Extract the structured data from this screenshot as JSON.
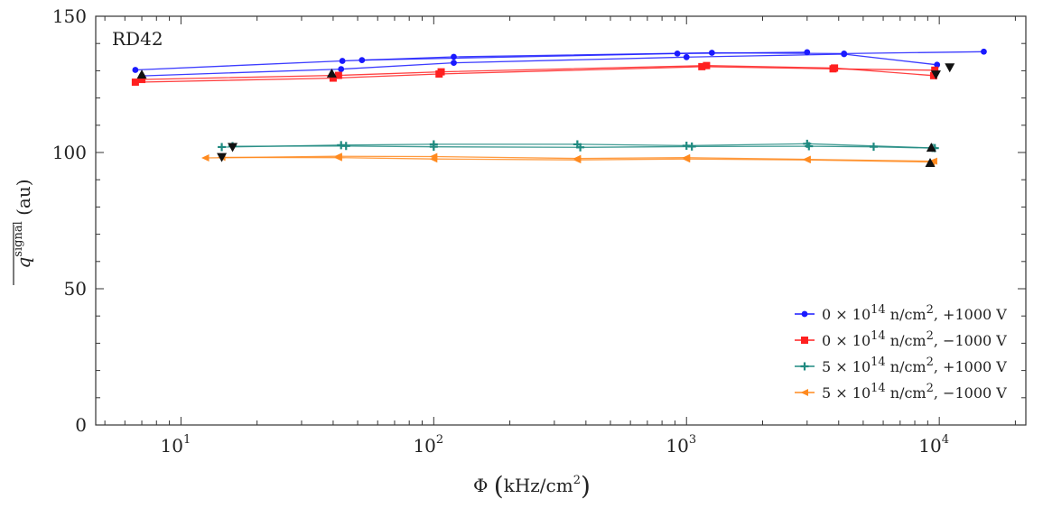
{
  "chart_data": {
    "type": "line",
    "title": "",
    "inset_label": "RD42",
    "xlabel": {
      "symbol": "Φ",
      "unit": "kHz/cm",
      "unit_sup": "2"
    },
    "ylabel": {
      "main": "q",
      "sup": "signal",
      "unit": "(au)"
    },
    "xscale": "log",
    "xlim": [
      4.6,
      22000
    ],
    "ylim": [
      0,
      150
    ],
    "yticks": [
      0,
      50,
      100,
      150
    ],
    "xticks": [
      {
        "value": 10,
        "base": "10",
        "exp": "1"
      },
      {
        "value": 100,
        "base": "10",
        "exp": "2"
      },
      {
        "value": 1000,
        "base": "10",
        "exp": "3"
      },
      {
        "value": 10000,
        "base": "10",
        "exp": "4"
      }
    ],
    "grid": false,
    "legend_position": "bottom-right",
    "series": [
      {
        "name": "0 × 10¹⁴ n/cm², +1000 V",
        "label": {
          "a": "0 × 10",
          "sup1": "14",
          "b": " n/cm",
          "sup2": "2",
          "c": ", +1000 V"
        },
        "color": "#1a1aff",
        "marker": "circle",
        "runs": [
          {
            "x": [
              6.6,
              43.5,
              120,
              1260,
              4200,
              15000
            ],
            "y": [
              130.3,
              133.6,
              135.1,
              136.6,
              136.3,
              137.0
            ],
            "end": "none"
          },
          {
            "x": [
              7.0,
              43.0,
              120,
              1000,
              4200,
              9800
            ],
            "y": [
              128.1,
              130.6,
              132.9,
              135.0,
              136.1,
              132.2
            ],
            "end": "none"
          },
          {
            "x": [
              52,
              920,
              3000
            ],
            "y": [
              133.9,
              136.3,
              136.8
            ],
            "end": "none"
          }
        ]
      },
      {
        "name": "0 × 10¹⁴ n/cm², −1000 V",
        "label": {
          "a": "0 × 10",
          "sup1": "14",
          "b": " n/cm",
          "sup2": "2",
          "c": ", −1000 V"
        },
        "color": "#ff2020",
        "marker": "square",
        "runs": [
          {
            "x": [
              6.6,
              40,
              105,
              1150,
              3800,
              9600
            ],
            "y": [
              125.8,
              127.3,
              128.8,
              131.5,
              130.7,
              130.2
            ],
            "end": "none"
          },
          {
            "x": [
              7.0,
              42,
              107,
              1200,
              3850,
              9500
            ],
            "y": [
              126.8,
              128.3,
              129.6,
              131.9,
              131.0,
              128.2
            ],
            "end": "none"
          }
        ]
      },
      {
        "name": "5 × 10¹⁴ n/cm², +1000 V",
        "label": {
          "a": "5 × 10",
          "sup1": "14",
          "b": " n/cm",
          "sup2": "2",
          "c": ", +1000 V"
        },
        "color": "#1f8a80",
        "marker": "plus",
        "runs": [
          {
            "x": [
              14.5,
              43,
              100,
              370,
              1000,
              3000,
              9400
            ],
            "y": [
              102.0,
              102.7,
              103.0,
              103.0,
              102.5,
              103.2,
              101.7
            ],
            "end": "none"
          },
          {
            "x": [
              16,
              45,
              100,
              380,
              1050,
              3050,
              5500,
              9600
            ],
            "y": [
              102.3,
              102.4,
              102.1,
              101.9,
              102.2,
              102.3,
              102.1,
              101.6
            ],
            "end": "none"
          }
        ]
      },
      {
        "name": "5 × 10¹⁴ n/cm², −1000 V",
        "label": {
          "a": "5 × 10",
          "sup1": "14",
          "b": " n/cm",
          "sup2": "2",
          "c": ", −1000 V"
        },
        "color": "#ff8a1f",
        "marker": "triangle-left",
        "runs": [
          {
            "x": [
              12.5,
              42,
              100,
              370,
              1000,
              3000,
              9500
            ],
            "y": [
              98.0,
              98.6,
              98.5,
              97.8,
              98.1,
              97.5,
              96.8
            ],
            "end": "none"
          },
          {
            "x": [
              14.5,
              42,
              100,
              370,
              1000,
              3000,
              9300
            ],
            "y": [
              98.2,
              98.1,
              97.6,
              97.3,
              97.6,
              97.3,
              96.5
            ],
            "end": "none"
          }
        ]
      }
    ],
    "extra_markers": [
      {
        "shape": "triangle-up",
        "x": 7.0,
        "y": 128.6
      },
      {
        "shape": "triangle-up",
        "x": 39.5,
        "y": 129.0
      },
      {
        "shape": "triangle-down",
        "x": 9700,
        "y": 128.6
      },
      {
        "shape": "triangle-down",
        "x": 11000,
        "y": 131.2
      },
      {
        "shape": "triangle-down",
        "x": 14.5,
        "y": 98.3
      },
      {
        "shape": "triangle-down",
        "x": 16,
        "y": 102.0
      },
      {
        "shape": "triangle-up",
        "x": 9300,
        "y": 101.8
      },
      {
        "shape": "triangle-up",
        "x": 9200,
        "y": 96.2
      }
    ]
  }
}
